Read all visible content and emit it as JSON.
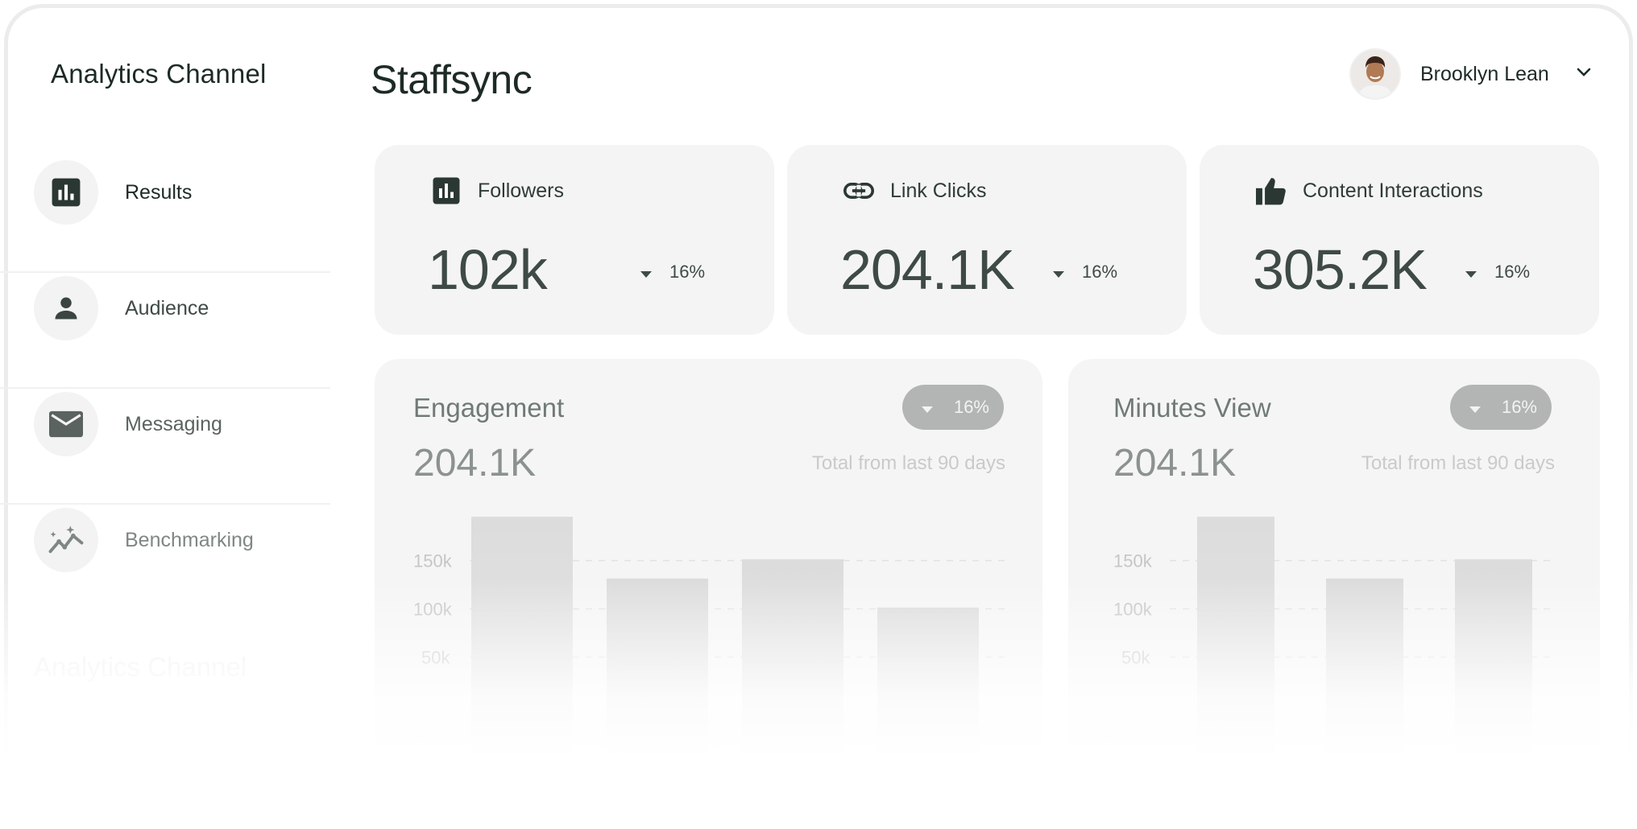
{
  "sidebar": {
    "brand": "Analytics Channel",
    "items": [
      {
        "label": "Results",
        "icon": "bar-chart-icon",
        "color": "#1d2a26"
      },
      {
        "label": "Audience",
        "icon": "person-icon",
        "color": "#3f4a46"
      },
      {
        "label": "Messaging",
        "icon": "mail-icon",
        "color": "#5a635f"
      },
      {
        "label": "Benchmarking",
        "icon": "trend-sparkle-icon",
        "color": "#7f8784"
      }
    ],
    "footer_ghost": "Analytics Channel"
  },
  "header": {
    "title": "Staffsync",
    "user_name": "Brooklyn Lean"
  },
  "stats": [
    {
      "label": "Followers",
      "icon": "bar-chart-icon",
      "value": "102k",
      "change": "16%"
    },
    {
      "label": "Link Clicks",
      "icon": "link-icon",
      "value": "204.1K",
      "change": "16%"
    },
    {
      "label": "Content Interactions",
      "icon": "thumbs-up-icon",
      "value": "305.2K",
      "change": "16%"
    }
  ],
  "charts": [
    {
      "title": "Engagement",
      "value": "204.1K",
      "change": "16%",
      "subtitle": "Total from last 90 days",
      "chart_data": {
        "type": "bar",
        "categories": [
          "",
          "",
          "",
          ""
        ],
        "values": [
          195,
          131,
          151,
          101
        ],
        "yticks": [
          "150k",
          "100k",
          "50k"
        ],
        "ytick_values": [
          150,
          100,
          50
        ],
        "grid": true
      }
    },
    {
      "title": "Minutes View",
      "value": "204.1K",
      "change": "16%",
      "subtitle": "Total from last 90 days",
      "chart_data": {
        "type": "bar",
        "categories": [
          "",
          "",
          ""
        ],
        "values": [
          195,
          131,
          151
        ],
        "yticks": [
          "150k",
          "100k",
          "50k"
        ],
        "ytick_values": [
          150,
          100,
          50
        ],
        "grid": true
      }
    }
  ]
}
